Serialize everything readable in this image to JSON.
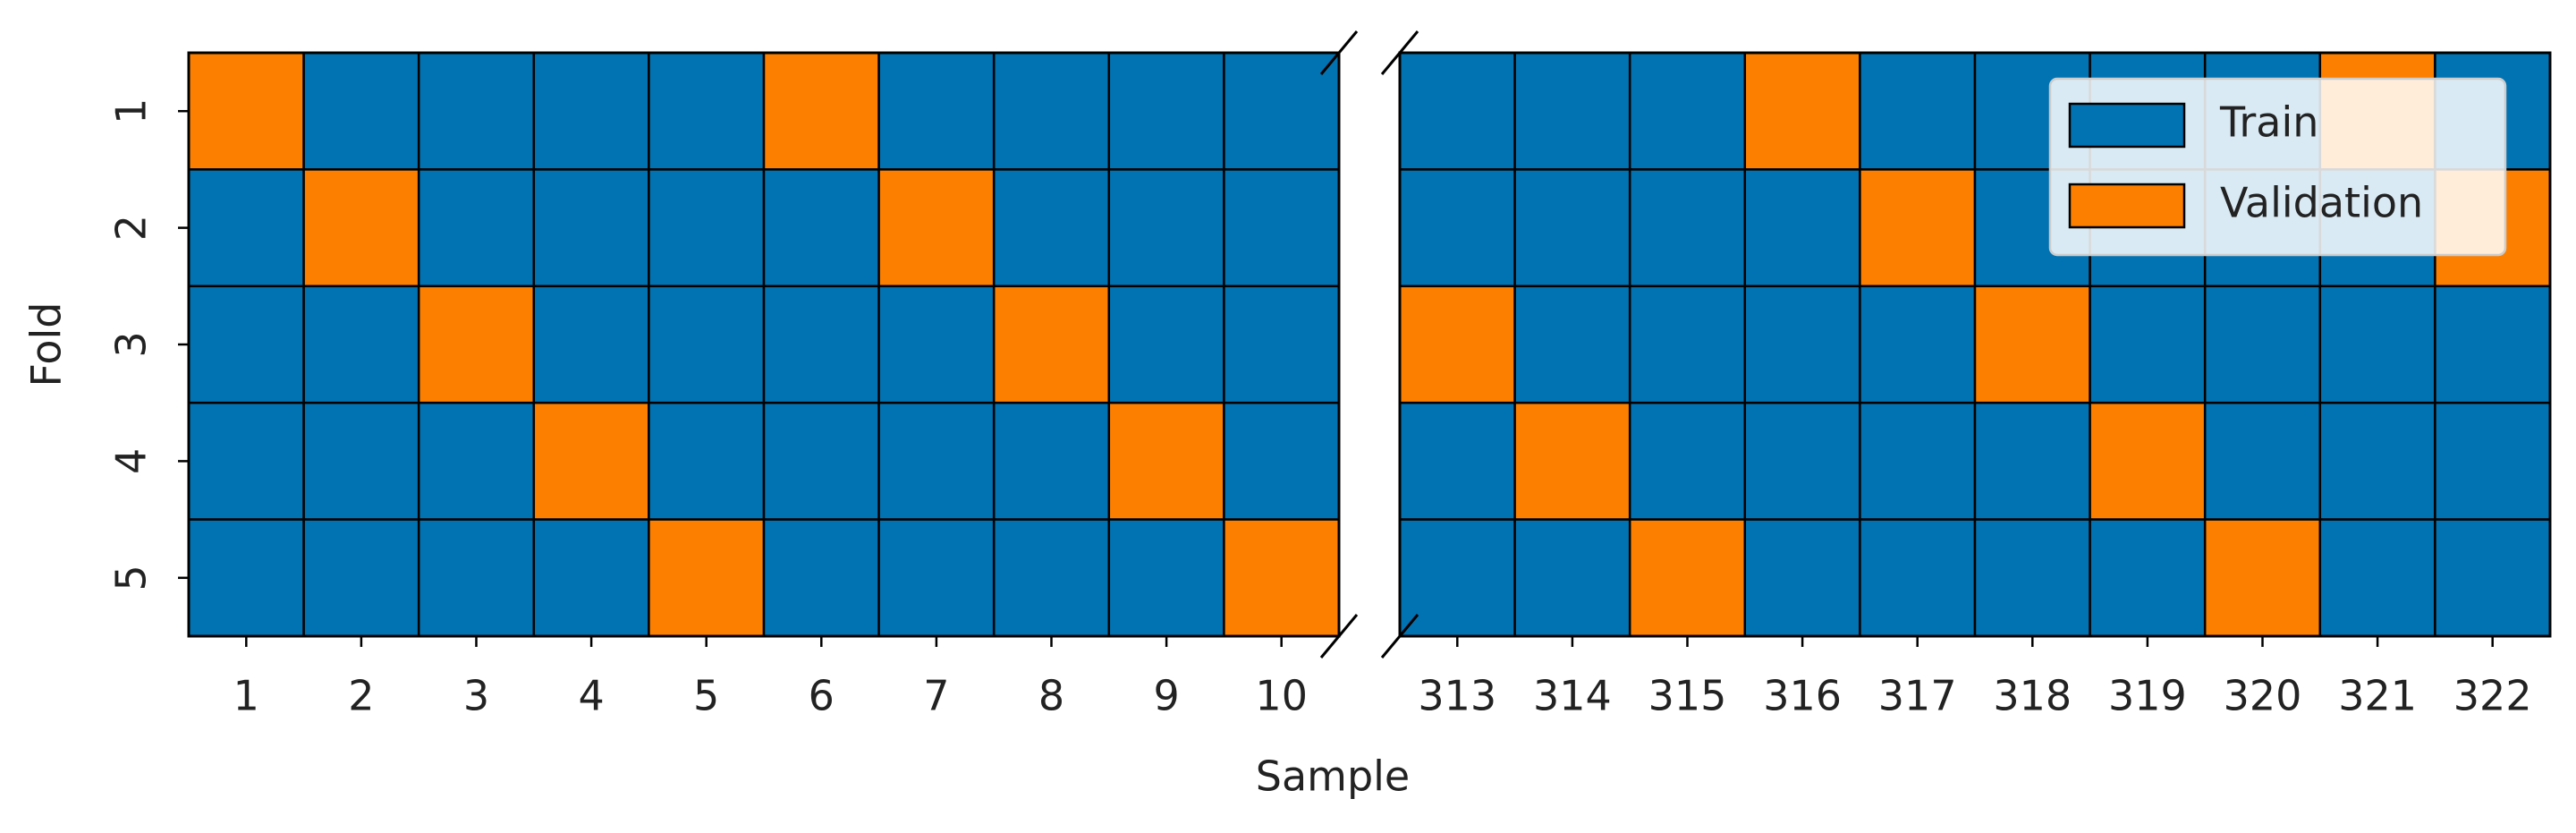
{
  "chart_data": {
    "type": "heatmap",
    "x_label": "Sample",
    "y_label": "Fold",
    "folds": [
      1,
      2,
      3,
      4,
      5
    ],
    "panels": [
      {
        "categories": [
          1,
          2,
          3,
          4,
          5,
          6,
          7,
          8,
          9,
          10
        ],
        "values": [
          1,
          2,
          3,
          4,
          5,
          1,
          2,
          3,
          4,
          5
        ]
      },
      {
        "categories": [
          313,
          314,
          315,
          316,
          317,
          318,
          319,
          320,
          321,
          322
        ],
        "values": [
          3,
          4,
          5,
          1,
          2,
          3,
          4,
          5,
          1,
          2
        ]
      }
    ],
    "series": [
      {
        "name": "Train",
        "color": "#0173b2"
      },
      {
        "name": "Validation",
        "color": "#fc7f00"
      }
    ],
    "legend": "upper right"
  }
}
